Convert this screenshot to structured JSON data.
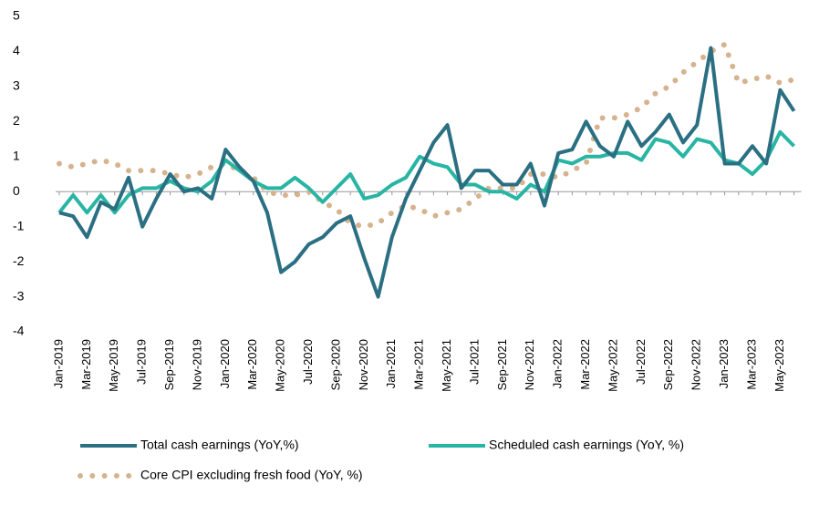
{
  "chart_data": {
    "type": "line",
    "categories": [
      "Jan-2019",
      null,
      "Mar-2019",
      null,
      "May-2019",
      null,
      "Jul-2019",
      null,
      "Sep-2019",
      null,
      "Nov-2019",
      null,
      "Jan-2020",
      null,
      "Mar-2020",
      null,
      "May-2020",
      null,
      "Jul-2020",
      null,
      "Sep-2020",
      null,
      "Nov-2020",
      null,
      "Jan-2021",
      null,
      "Mar-2021",
      null,
      "May-2021",
      null,
      "Jul-2021",
      null,
      "Sep-2021",
      null,
      "Nov-2021",
      null,
      "Jan-2022",
      null,
      "Mar-2022",
      null,
      "May-2022",
      null,
      "Jul-2022",
      null,
      "Sep-2022",
      null,
      "Nov-2022",
      null,
      "Jan-2023",
      null,
      "Mar-2023",
      null,
      "May-2023",
      null
    ],
    "series": [
      {
        "name": "Total cash earnings (YoY,%)",
        "color": "#2b6f82",
        "style": "solid",
        "values": [
          -0.6,
          -0.7,
          -1.3,
          -0.3,
          -0.5,
          0.4,
          -1.0,
          -0.2,
          0.5,
          0.0,
          0.1,
          -0.2,
          1.2,
          0.7,
          0.3,
          -0.6,
          -2.3,
          -2.0,
          -1.5,
          -1.3,
          -0.9,
          -0.7,
          -1.9,
          -3.0,
          -1.3,
          -0.2,
          0.6,
          1.4,
          1.9,
          0.1,
          0.6,
          0.6,
          0.2,
          0.2,
          0.8,
          -0.4,
          1.1,
          1.2,
          2.0,
          1.3,
          1.0,
          2.0,
          1.3,
          1.7,
          2.2,
          1.4,
          1.9,
          4.1,
          0.8,
          0.8,
          1.3,
          0.8,
          2.9,
          2.3
        ]
      },
      {
        "name": "Scheduled cash earnings (YoY, %)",
        "color": "#28b5a3",
        "style": "solid",
        "values": [
          -0.6,
          -0.1,
          -0.6,
          -0.1,
          -0.6,
          -0.1,
          0.1,
          0.1,
          0.3,
          0.1,
          0.0,
          0.3,
          0.9,
          0.6,
          0.3,
          0.1,
          0.1,
          0.4,
          0.1,
          -0.3,
          0.1,
          0.5,
          -0.2,
          -0.1,
          0.2,
          0.4,
          1.0,
          0.8,
          0.7,
          0.2,
          0.2,
          0.0,
          0.0,
          -0.2,
          0.2,
          0.0,
          0.9,
          0.8,
          1.0,
          1.0,
          1.1,
          1.1,
          0.9,
          1.5,
          1.4,
          1.0,
          1.5,
          1.4,
          0.9,
          0.8,
          0.5,
          0.9,
          1.7,
          1.3
        ]
      },
      {
        "name": "Core CPI excluding fresh food (YoY, %)",
        "color": "#d6b38f",
        "style": "dotted",
        "values": [
          0.8,
          0.7,
          0.8,
          0.9,
          0.8,
          0.6,
          0.6,
          0.6,
          0.5,
          0.4,
          0.5,
          0.7,
          0.8,
          0.6,
          0.4,
          0.0,
          -0.1,
          -0.1,
          0.0,
          -0.3,
          -0.5,
          -0.9,
          -1.0,
          -0.9,
          -0.6,
          -0.4,
          -0.5,
          -0.7,
          -0.6,
          -0.5,
          -0.2,
          0.1,
          0.1,
          0.1,
          0.5,
          0.5,
          0.4,
          0.6,
          0.8,
          2.1,
          2.1,
          2.2,
          2.4,
          2.8,
          3.0,
          3.4,
          3.7,
          4.0,
          4.2,
          3.1,
          3.2,
          3.3,
          3.1,
          3.2
        ]
      }
    ],
    "ylim": [
      -4,
      5
    ],
    "yticks": [
      -4,
      -3,
      -2,
      -1,
      0,
      1,
      2,
      3,
      4,
      5
    ],
    "grid": false,
    "legend": "bottom"
  }
}
